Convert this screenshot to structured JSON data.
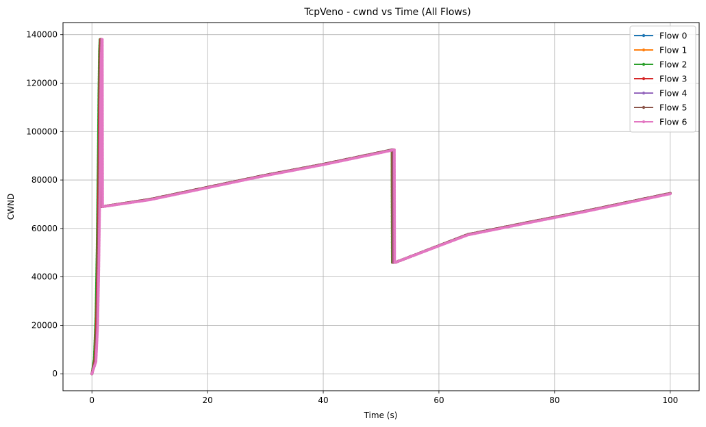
{
  "chart_data": {
    "type": "line",
    "title": "TcpVeno - cwnd vs Time (All Flows)",
    "xlabel": "Time (s)",
    "ylabel": "CWND",
    "xlim": [
      -5,
      105
    ],
    "ylim": [
      -7000,
      145000
    ],
    "xticks": [
      0,
      20,
      40,
      60,
      80,
      100
    ],
    "yticks": [
      0,
      20000,
      40000,
      60000,
      80000,
      100000,
      120000,
      140000
    ],
    "grid": true,
    "legend_position": "top-right",
    "series": [
      {
        "name": "Flow 0",
        "color": "#1f77b4",
        "x": [
          0,
          0.5,
          0.8,
          1.0,
          1.2,
          1.3,
          1.4,
          1.5,
          1.6,
          1.7,
          1.75,
          10,
          20,
          30,
          40,
          50,
          51.9,
          51.95,
          52.5,
          65,
          75,
          85,
          100
        ],
        "y": [
          0,
          5000,
          20000,
          45000,
          80000,
          110000,
          130000,
          138000,
          138000,
          69000,
          69000,
          72000,
          77000,
          82000,
          86500,
          91500,
          92500,
          46000,
          46000,
          57500,
          62300,
          67000,
          74500
        ]
      },
      {
        "name": "Flow 1",
        "color": "#ff7f0e",
        "x": [
          0,
          0.5,
          0.8,
          1.0,
          1.2,
          1.3,
          1.4,
          1.5,
          1.6,
          1.7,
          1.75,
          10,
          20,
          30,
          40,
          50,
          51.9,
          51.95,
          52.5,
          65,
          75,
          85,
          100
        ],
        "y": [
          0,
          5000,
          20000,
          45000,
          80000,
          110000,
          130000,
          138000,
          138000,
          69000,
          69000,
          72000,
          77000,
          82000,
          86500,
          91500,
          92500,
          46000,
          46000,
          57500,
          62300,
          67000,
          74500
        ]
      },
      {
        "name": "Flow 2",
        "color": "#2ca02c",
        "x": [
          0,
          0.4,
          0.7,
          0.9,
          1.1,
          1.2,
          1.3,
          1.4,
          1.5,
          1.7,
          1.75,
          10,
          20,
          30,
          40,
          50,
          51.9,
          51.95,
          52.5,
          65,
          75,
          85,
          100
        ],
        "y": [
          0,
          6000,
          24000,
          52000,
          90000,
          115000,
          133000,
          138000,
          138000,
          69000,
          69000,
          72000,
          77000,
          82000,
          86500,
          91500,
          92500,
          46000,
          46000,
          57500,
          62300,
          67000,
          74500
        ]
      },
      {
        "name": "Flow 3",
        "color": "#d62728",
        "x": [
          0,
          0.5,
          0.8,
          1.0,
          1.2,
          1.3,
          1.4,
          1.5,
          1.6,
          1.7,
          1.75,
          10,
          20,
          30,
          40,
          50,
          52.0,
          52.05,
          52.5,
          65,
          75,
          85,
          100
        ],
        "y": [
          0,
          5000,
          20000,
          45000,
          80000,
          110000,
          130000,
          138000,
          138000,
          69000,
          69000,
          72000,
          77000,
          82000,
          86500,
          91500,
          92500,
          46000,
          46000,
          57500,
          62300,
          67000,
          74500
        ]
      },
      {
        "name": "Flow 4",
        "color": "#9467bd",
        "x": [
          0,
          0.6,
          0.9,
          1.1,
          1.3,
          1.4,
          1.5,
          1.6,
          1.7,
          1.75,
          1.8,
          10,
          20,
          30,
          40,
          50,
          52.1,
          52.15,
          52.5,
          65,
          75,
          85,
          100
        ],
        "y": [
          0,
          5000,
          20000,
          45000,
          80000,
          110000,
          130000,
          138000,
          138000,
          69000,
          69000,
          72000,
          77000,
          82000,
          86500,
          91500,
          92500,
          46000,
          46000,
          57500,
          62300,
          67000,
          74500
        ]
      },
      {
        "name": "Flow 5",
        "color": "#8c564b",
        "x": [
          0,
          0.6,
          0.9,
          1.1,
          1.3,
          1.4,
          1.5,
          1.6,
          1.7,
          1.75,
          1.8,
          10,
          20,
          30,
          40,
          50,
          52.2,
          52.25,
          52.5,
          65,
          75,
          85,
          100
        ],
        "y": [
          0,
          5000,
          20000,
          45000,
          80000,
          110000,
          130000,
          138000,
          138000,
          69000,
          69000,
          72000,
          77000,
          82000,
          86500,
          91500,
          92500,
          46000,
          46000,
          57500,
          62300,
          67000,
          74500
        ]
      },
      {
        "name": "Flow 6",
        "color": "#e377c2",
        "x": [
          0,
          0.7,
          1.0,
          1.2,
          1.4,
          1.5,
          1.6,
          1.7,
          1.8,
          1.85,
          1.9,
          10,
          20,
          30,
          40,
          50,
          52.3,
          52.35,
          52.5,
          65,
          75,
          85,
          100
        ],
        "y": [
          0,
          5000,
          20000,
          45000,
          80000,
          110000,
          130000,
          138000,
          138000,
          69000,
          69000,
          71800,
          76800,
          81800,
          86300,
          91300,
          92500,
          46000,
          46000,
          57300,
          62100,
          66800,
          74300
        ]
      }
    ]
  }
}
